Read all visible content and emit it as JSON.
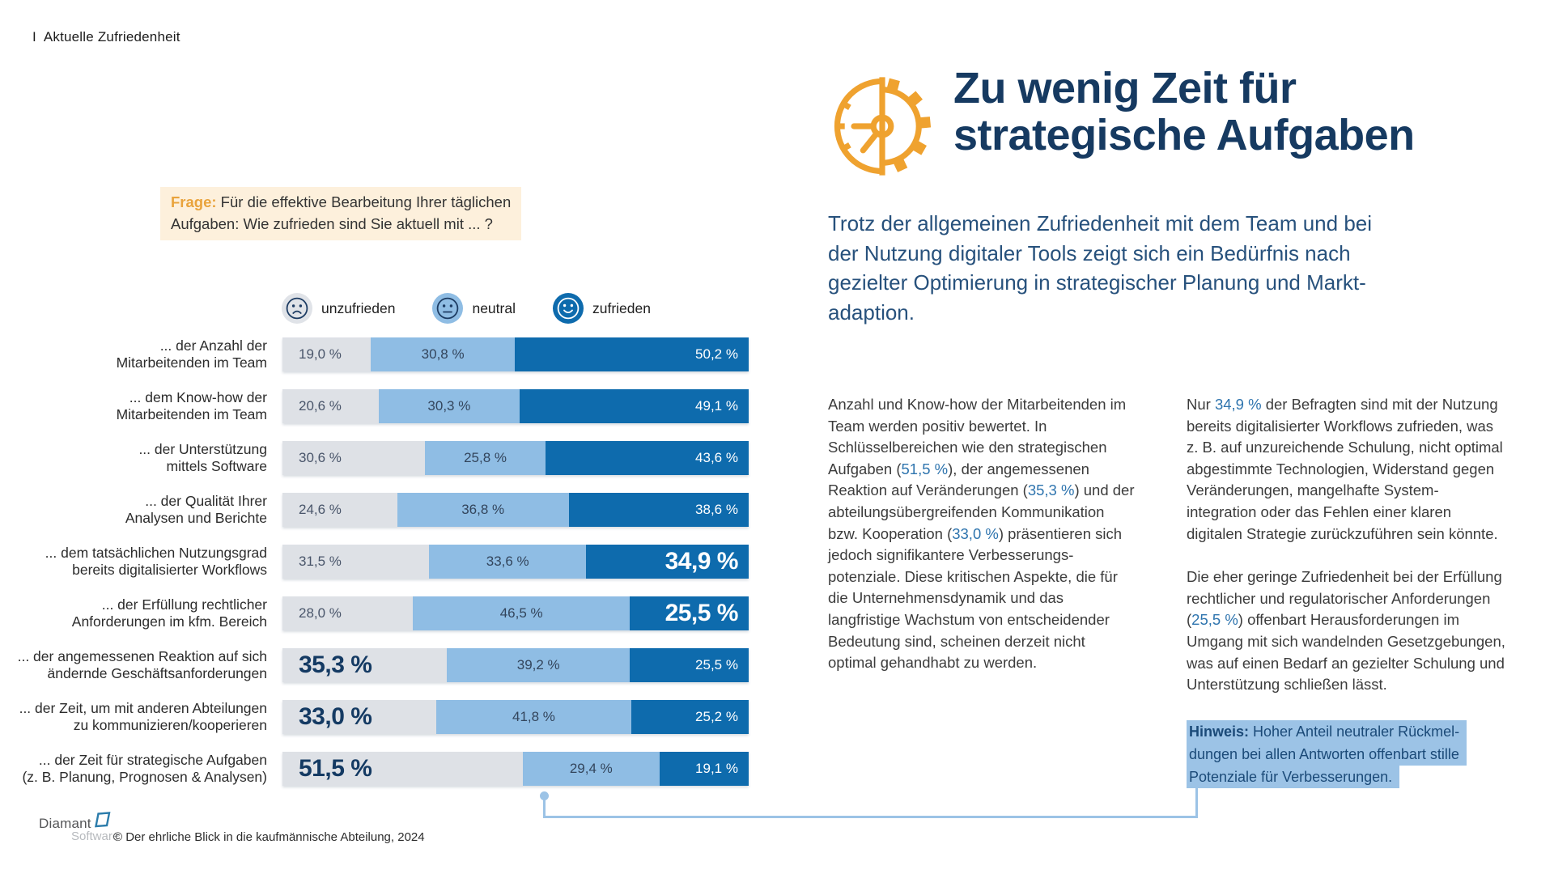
{
  "page": {
    "eyebrow": "I  Aktuelle Zufriedenheit"
  },
  "question": {
    "lines": [
      [
        {
          "t": "Frage:",
          "o": 1
        },
        {
          "t": " Für die effektive Bearbeitung Ihrer täglichen"
        }
      ],
      [
        {
          "t": "Aufgaben: Wie zufrieden sind Sie aktuell mit ... ?"
        }
      ]
    ]
  },
  "legend": [
    {
      "id": "unzufrieden",
      "label": "unzufrieden",
      "color": "#dee1e6"
    },
    {
      "id": "neutral",
      "label": "neutral",
      "color": "#8fbde4"
    },
    {
      "id": "zufrieden",
      "label": "zufrieden",
      "color": "#0e6bad"
    }
  ],
  "chart_data": {
    "type": "bar",
    "stacked": true,
    "orientation": "horizontal",
    "unit": "%",
    "xlim": [
      0,
      100
    ],
    "series_names": [
      "unzufrieden",
      "neutral",
      "zufrieden"
    ],
    "colors": {
      "unzufrieden": "#dee1e6",
      "neutral": "#8fbde4",
      "zufrieden": "#0e6bad"
    },
    "rows": [
      {
        "label_lines": [
          "... der Anzahl der",
          "Mitarbeitenden im Team"
        ],
        "values": [
          19.0,
          30.8,
          50.2
        ],
        "display": [
          "19,0 %",
          "30,8 %",
          "50,2 %"
        ],
        "emph": null
      },
      {
        "label_lines": [
          "... dem Know-how der",
          "Mitarbeitenden  im Team"
        ],
        "values": [
          20.6,
          30.3,
          49.1
        ],
        "display": [
          "20,6 %",
          "30,3 %",
          "49,1 %"
        ],
        "emph": null
      },
      {
        "label_lines": [
          "... der Unterstützung",
          "mittels Software"
        ],
        "values": [
          30.6,
          25.8,
          43.6
        ],
        "display": [
          "30,6 %",
          "25,8 %",
          "43,6 %"
        ],
        "emph": null
      },
      {
        "label_lines": [
          "... der Qualität Ihrer",
          "Analysen und Berichte"
        ],
        "values": [
          24.6,
          36.8,
          38.6
        ],
        "display": [
          "24,6 %",
          "36,8 %",
          "38,6 %"
        ],
        "emph": null
      },
      {
        "label_lines": [
          "... dem tatsächlichen Nutzungsgrad",
          "bereits digitalisierter Workflows"
        ],
        "values": [
          31.5,
          33.6,
          34.9
        ],
        "display": [
          "31,5 %",
          "33,6 %",
          "34,9 %"
        ],
        "emph": "zufrieden"
      },
      {
        "label_lines": [
          "... der Erfüllung rechtlicher",
          "Anforderungen im kfm. Bereich"
        ],
        "values": [
          28.0,
          46.5,
          25.5
        ],
        "display": [
          "28,0 %",
          "46,5 %",
          "25,5 %"
        ],
        "emph": "zufrieden"
      },
      {
        "label_lines": [
          "... der angemessenen Reaktion auf sich",
          "ändernde Geschäftsanforderungen"
        ],
        "values": [
          35.3,
          39.2,
          25.5
        ],
        "display": [
          "35,3 %",
          "39,2 %",
          "25,5 %"
        ],
        "emph": "unzufrieden"
      },
      {
        "label_lines": [
          "... der Zeit, um mit anderen Abteilungen",
          "zu kommunizieren/kooperieren"
        ],
        "values": [
          33.0,
          41.8,
          25.2
        ],
        "display": [
          "33,0 %",
          "41,8 %",
          "25,2 %"
        ],
        "emph": "unzufrieden"
      },
      {
        "label_lines": [
          "... der Zeit für strategische Aufgaben",
          "(z. B. Planung, Prognosen & Analysen)"
        ],
        "values": [
          51.5,
          29.4,
          19.1
        ],
        "display": [
          "51,5 %",
          "29,4 %",
          "19,1 %"
        ],
        "emph": "unzufrieden"
      }
    ]
  },
  "headline": {
    "line1": "Zu wenig Zeit für",
    "line2": "strategische Aufgaben"
  },
  "intro": {
    "lines": [
      [
        {
          "t": "Trotz der allgemeinen Zufriedenheit mit dem Team und bei"
        }
      ],
      [
        {
          "t": "der Nutzung digitaler Tools zeigt sich ein Bedürfnis nach"
        }
      ],
      [
        {
          "t": "gezielter Optimierung in strategischer Planung und Markt-"
        }
      ],
      [
        {
          "t": "adaption."
        }
      ]
    ]
  },
  "columns": {
    "left": {
      "lines": [
        [
          {
            "t": "Anzahl und Know-how der Mitarbeitenden im"
          }
        ],
        [
          {
            "t": "Team werden positiv bewertet. In"
          }
        ],
        [
          {
            "t": "Schlüsselbereichen wie den strategischen"
          }
        ],
        [
          {
            "t": "Aufgaben ("
          },
          {
            "t": "51,5 %",
            "c": 1
          },
          {
            "t": "), der angemessenen"
          }
        ],
        [
          {
            "t": "Reaktion auf Veränderungen ("
          },
          {
            "t": "35,3 %",
            "c": 1
          },
          {
            "t": ") und der"
          }
        ],
        [
          {
            "t": "abteilungsübergreifenden Kommunikation"
          }
        ],
        [
          {
            "t": "bzw. Kooperation ("
          },
          {
            "t": "33,0 %",
            "c": 1
          },
          {
            "t": ") präsentieren sich"
          }
        ],
        [
          {
            "t": "jedoch signifikantere Verbesserungs-"
          }
        ],
        [
          {
            "t": "potenziale. Diese kritischen Aspekte, die für"
          }
        ],
        [
          {
            "t": "die Unternehmensdynamik und das"
          }
        ],
        [
          {
            "t": "langfristige Wachstum von entscheidender"
          }
        ],
        [
          {
            "t": "Bedeutung sind, scheinen derzeit nicht"
          }
        ],
        [
          {
            "t": "optimal gehandhabt zu werden."
          }
        ]
      ]
    },
    "right": {
      "p1": [
        [
          {
            "t": "Nur "
          },
          {
            "t": "34,9 %",
            "c": 1
          },
          {
            "t": " der Befragten sind mit der Nutzung"
          }
        ],
        [
          {
            "t": "bereits digitalisierter Workflows zufrieden, was"
          }
        ],
        [
          {
            "t": "z. B. auf unzureichende Schulung, nicht optimal"
          }
        ],
        [
          {
            "t": "abgestimmte Technologien, Widerstand gegen"
          }
        ],
        [
          {
            "t": "Veränderungen, mangelhafte System-"
          }
        ],
        [
          {
            "t": "integration oder das Fehlen einer klaren"
          }
        ],
        [
          {
            "t": "digitalen Strategie zurückzuführen sein könnte."
          }
        ]
      ],
      "p2": [
        [
          {
            "t": "Die eher geringe Zufriedenheit bei der Erfüllung"
          }
        ],
        [
          {
            "t": "rechtlicher und regulatorischer Anforderungen"
          }
        ],
        [
          {
            "t": "("
          },
          {
            "t": "25,5 %",
            "c": 1
          },
          {
            "t": ") offenbart Herausforderungen im"
          }
        ],
        [
          {
            "t": "Umgang mit sich wandelnden Gesetzgebungen,"
          }
        ],
        [
          {
            "t": "was auf einen Bedarf an gezielter Schulung und"
          }
        ],
        [
          {
            "t": "Unterstützung schließen lässt."
          }
        ]
      ]
    }
  },
  "hinweis": {
    "lines": [
      [
        {
          "t": "Hinweis:",
          "b": 1
        },
        {
          "t": " Hoher Anteil neutraler Rückmel-"
        }
      ],
      [
        {
          "t": "dungen bei allen Antworten offenbart stille"
        }
      ],
      [
        {
          "t": "Potenziale für Verbesserungen."
        }
      ]
    ]
  },
  "footer": {
    "logo_line1": "Diamant",
    "logo_line2": "Software",
    "copyright": "© Der ehrliche Blick in die kaufmännische Abteilung, 2024"
  },
  "theme": {
    "navy": "#163a61",
    "orange": "#efa22f",
    "bar_gray": "#dee1e6",
    "bar_light_blue": "#8fbde4",
    "bar_dark_blue": "#0e6bad",
    "highlight_blue": "#9cc3e6",
    "question_bg": "#fdf0dc",
    "pct_text_blue": "#2e74ae"
  }
}
